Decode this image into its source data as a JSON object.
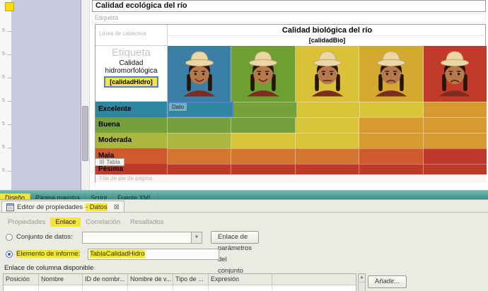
{
  "icons": {
    "dropdown_arrow": "▼",
    "table_grid": "⊞",
    "close": "⊠",
    "scroll_up": "▲"
  },
  "ruler": {
    "labels": [
      "5",
      "5",
      "5",
      "5",
      "5",
      "5",
      "5"
    ]
  },
  "designer": {
    "title": "Calidad ecológica del río",
    "label_placeholder": "Etiqueta",
    "table": {
      "header_band_label": "Línea de cabecera",
      "bio_title": "Calidad biológica del río",
      "bio_binding": "[calidadBio]",
      "left_placeholder": "Etiqueta",
      "hidro_title": "Calidad hidromorfológica",
      "hidro_binding": "[calidadHidro]",
      "selected_cell_label": "Dato",
      "footer_band_label": "Fila de pie de página",
      "table_tab_label": "Tabla",
      "header_columns": [
        {
          "icon": "person-face-icon",
          "mood": "happy",
          "bg": "#3a7fa6"
        },
        {
          "icon": "person-face-icon",
          "mood": "happy",
          "bg": "#6f9f33"
        },
        {
          "icon": "person-face-icon",
          "mood": "neutral",
          "bg": "#d9c237"
        },
        {
          "icon": "person-face-icon",
          "mood": "sad",
          "bg": "#d4a92f"
        },
        {
          "icon": "person-face-icon",
          "mood": "sad",
          "bg": "#c23a2a"
        }
      ],
      "rows": [
        {
          "label": "Excelente",
          "label_bg": "#2e86a1",
          "cells": [
            "#2e86a1",
            "#74a13c",
            "#d9c53a",
            "#d9c53a",
            "#d79a33"
          ],
          "selected_cell": 0
        },
        {
          "label": "Buena",
          "label_bg": "#74a13c",
          "cells": [
            "#74a13c",
            "#74a13c",
            "#d9c53a",
            "#d79a33",
            "#d79a33"
          ]
        },
        {
          "label": "Moderada",
          "label_bg": "#abb73f",
          "cells": [
            "#abb73f",
            "#d9c53a",
            "#d9c53a",
            "#d79a33",
            "#d79a33"
          ]
        },
        {
          "label": "Mala",
          "label_bg": "#cf5a2e",
          "cells": [
            "#d3762f",
            "#d3762f",
            "#d3762f",
            "#cf5a2e",
            "#c0392b"
          ]
        },
        {
          "label": "Pésima",
          "label_bg": "#c0392b",
          "cells": [
            "#c0392b",
            "#c0392b",
            "#c0392b",
            "#c0392b",
            "#c0392b"
          ]
        }
      ]
    }
  },
  "views": {
    "tabs": [
      {
        "label": "Diseño",
        "highlighted": true
      },
      {
        "label": "Página maestra",
        "highlighted": false
      },
      {
        "label": "Script",
        "highlighted": false
      },
      {
        "label": "Fuente XML",
        "highlighted": false
      }
    ]
  },
  "property_editor": {
    "title": "Editor de propiedades",
    "context": "- Datos",
    "tabs": [
      {
        "label": "Propiedades",
        "highlighted": false
      },
      {
        "label": "Enlace",
        "highlighted": true
      },
      {
        "label": "Correlación",
        "highlighted": false
      },
      {
        "label": "Resaltados",
        "highlighted": false
      }
    ],
    "dataset_option": "Conjunto de datos:",
    "dataset_value": "",
    "params_button": "Enlace de parámetros del conjunto de datos...",
    "element_option": "Elemento de informe:",
    "element_value": "TablaCalidadHidro",
    "binding_section_label": "Enlace de columna disponible",
    "columns": [
      "Posición",
      "Nombre",
      "ID de nombr...",
      "Nombre de v...",
      "Tipo de ...",
      "Expresión"
    ],
    "add_button": "Añadir..."
  }
}
